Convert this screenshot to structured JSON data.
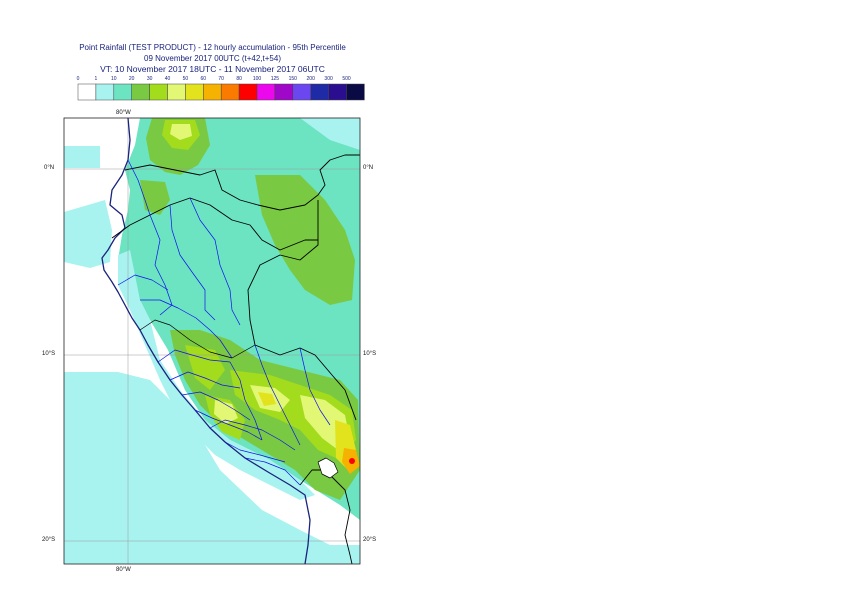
{
  "title": {
    "line1": "Point Rainfall (TEST PRODUCT) - 12 hourly accumulation - 95th Percentile",
    "line2": "09 November 2017 00UTC (t+42,t+54)",
    "line3": "VT: 10 November 2017 18UTC - 11 November 2017 06UTC"
  },
  "legend": {
    "thresholds": [
      "0",
      "1",
      "10",
      "20",
      "30",
      "40",
      "50",
      "60",
      "70",
      "80",
      "100",
      "125",
      "150",
      "200",
      "300",
      "500"
    ],
    "colors": [
      "#ffffff",
      "#a8f3f0",
      "#6ce3c1",
      "#79c943",
      "#a3db1d",
      "#e2f773",
      "#e3e31d",
      "#f6b200",
      "#fb7b00",
      "#ff0000",
      "#ec08ec",
      "#9f08c9",
      "#6b47f0",
      "#1e2aa6",
      "#2a0e8f",
      "#0a0a45"
    ]
  },
  "axes": {
    "top_lon": "80°W",
    "bottom_lon": "80°W",
    "lat_left": [
      "0°N",
      "10°S",
      "20°S"
    ],
    "lat_right": [
      "0°N",
      "10°S",
      "20°S"
    ]
  },
  "map_colors": {
    "ocean_light": "#a8f3f0",
    "land_light": "#6ce3c1",
    "moderate": "#79c943",
    "heavy": "#a3db1d",
    "very_heavy": "#e2f773",
    "intense": "#e3e31d",
    "extreme": "#f6b200",
    "max": "#ff0000",
    "coastline": "#1a237e",
    "country_border": "#000000",
    "region_border": "#1010ee",
    "grid": "#9a9a9a"
  }
}
